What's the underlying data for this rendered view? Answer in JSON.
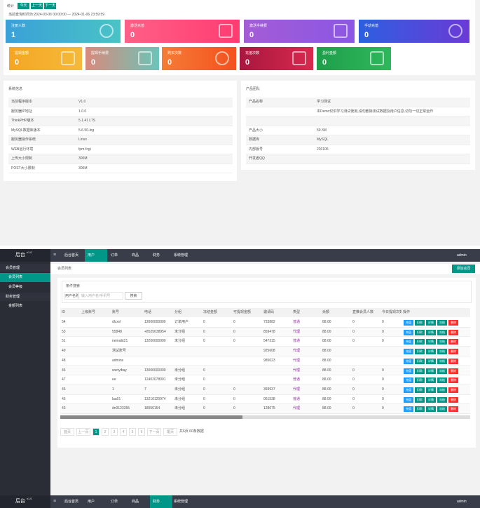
{
  "stats": {
    "label": "统计",
    "buttons": [
      "今天",
      "上一天",
      "下一天"
    ],
    "range": "当前查询时间为:2024-03-06 00:00:00 --- 2024-01-06 23:59:59",
    "cards": [
      {
        "label": "注册人数",
        "value": 1
      },
      {
        "label": "激活充值",
        "value": 0
      },
      {
        "label": "激活手续费",
        "value": 0
      },
      {
        "label": "手动充值",
        "value": 0
      },
      {
        "label": "提现金额",
        "value": 0
      },
      {
        "label": "提现手续费",
        "value": 0
      },
      {
        "label": "购买次数",
        "value": 0
      },
      {
        "label": "充值次数",
        "value": 0
      },
      {
        "label": "盈利金额",
        "value": 0
      }
    ]
  },
  "system": {
    "title": "系统信息",
    "rows": [
      [
        "当前程序版本",
        "V1.0"
      ],
      [
        "服务器IP地址",
        "1.0.0"
      ],
      [
        "ThinkPHP版本",
        "5.1.41 LTS"
      ],
      [
        "MySQL数据库版本",
        "5.6.50-log"
      ],
      [
        "服务器操作系统",
        "Linux"
      ],
      [
        "WEB运行环境",
        "fpm-fcgi"
      ],
      [
        "上传大小限制",
        "300M"
      ],
      [
        "POST大小限制",
        "300M"
      ]
    ]
  },
  "product": {
    "title": "产品团队",
    "rows": [
      {
        "label": "产品名称",
        "value": "学习测试"
      },
      {
        "value": "本Demo仅供学习测试使用,请勿删除测试数据及用户信息,切勿一切正常运作"
      },
      null,
      {
        "label": "产品大小",
        "value": "59.3M"
      },
      {
        "label": "数据库",
        "value": "MySQL"
      },
      {
        "label": "内部版号",
        "value": "230106"
      },
      {
        "label": "开发者QQ"
      }
    ]
  },
  "admin": {
    "logo": "后台",
    "version": "v1.0",
    "nav": [
      "后台首页",
      "用户",
      "订单",
      "商品",
      "财务",
      "系统管理"
    ],
    "user": "admin",
    "sidebar": [
      {
        "group": "会员管理",
        "items": [
          "会员列表",
          "会员等级"
        ]
      },
      {
        "group": "财务管理",
        "items": [
          "金额列表"
        ]
      }
    ],
    "breadcrumb": "会员列表",
    "add_button": "添加会员",
    "search": {
      "legend": "条件搜索",
      "label": "用户名称",
      "placeholder": "输入用户名/手机号",
      "button": "搜索"
    },
    "table": {
      "headers": [
        "ID",
        "上级账号",
        "账号",
        "电话",
        "分组",
        "冻结金额",
        "可提现金额",
        "邀请码",
        "类型",
        "余额",
        "直推会员人数",
        "今日提现次数",
        "操作"
      ],
      "actions": [
        "充值",
        "扣款",
        "详情",
        "冻结",
        "删除"
      ],
      "rows": [
        [
          "54",
          null,
          "dlcxvl",
          "13000000000",
          "订单用户",
          "0",
          "0",
          "733882",
          "普通",
          "88.00",
          "0",
          "0"
        ],
        [
          "53",
          null,
          "55848",
          "+8525638954",
          "未分组",
          "0",
          "0",
          "859478",
          "代理",
          "88.00",
          "0",
          "0"
        ],
        [
          "51",
          null,
          "nemabt21",
          "13200000000",
          "未分组",
          "0",
          "0",
          "547315",
          "普通",
          "88.00",
          "0",
          "0"
        ],
        [
          "49",
          null,
          "测试账号",
          null,
          null,
          null,
          null,
          "925608",
          "代理",
          "88.00",
          null,
          null
        ],
        [
          "48",
          null,
          "admins",
          null,
          null,
          null,
          null,
          "985023",
          "代理",
          "88.00",
          null,
          null
        ],
        [
          "46",
          null,
          "wenyibay",
          "13000000000",
          "未分组",
          "0",
          null,
          null,
          "代理",
          "88.00",
          "0",
          "0"
        ],
        [
          "47",
          null,
          "ee",
          "12402078001",
          "未分组",
          "0",
          null,
          null,
          "普通",
          "88.00",
          "0",
          "0"
        ],
        [
          "46",
          null,
          "1",
          "7",
          "未分组",
          "0",
          "0",
          "369937",
          "代理",
          "88.00",
          "0",
          "0"
        ],
        [
          "45",
          null,
          "laa01",
          "13210120074",
          "未分组",
          "0",
          "0",
          "061538",
          "普通",
          "88.00",
          "0",
          "0"
        ],
        [
          "43",
          null,
          "dn0123355",
          "18056154",
          "未分组",
          "0",
          "0",
          "128075",
          "代理",
          "88.00",
          "0",
          "0"
        ]
      ]
    },
    "pager": {
      "pages": [
        "首页",
        "上一页",
        "1",
        "2",
        "3",
        "4",
        "5",
        "6",
        "下一页",
        "尾页"
      ],
      "total": "共6页 60条数据"
    }
  }
}
